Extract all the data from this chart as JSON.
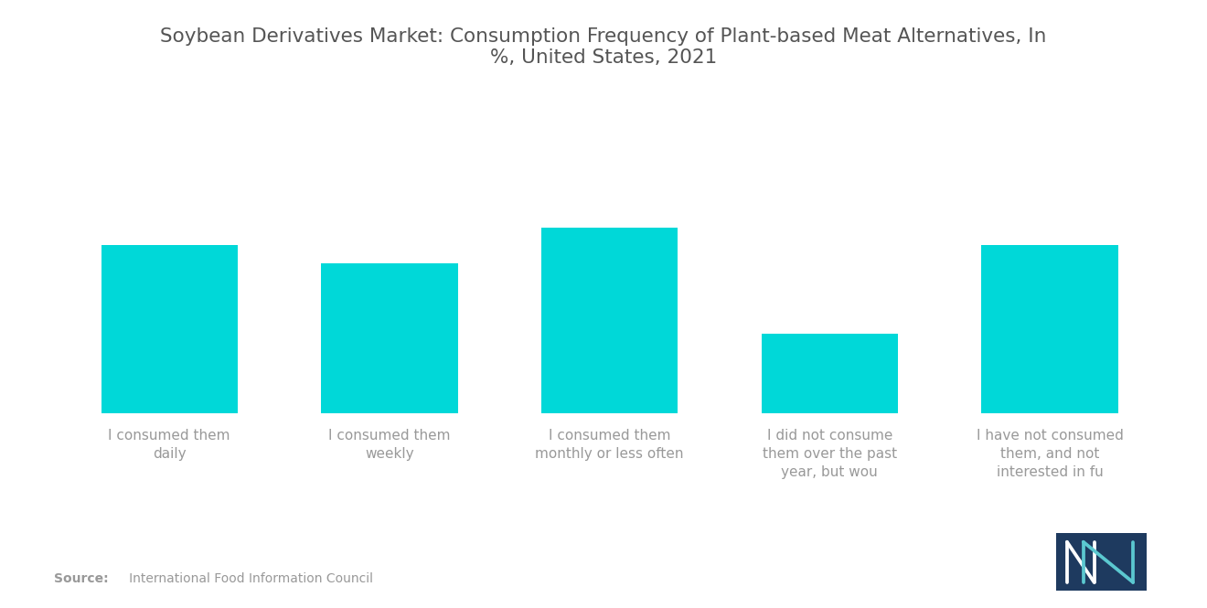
{
  "title": "Soybean Derivatives Market: Consumption Frequency of Plant-based Meat Alternatives, In\n%, United States, 2021",
  "categories": [
    "I consumed them\ndaily",
    "I consumed them\nweekly",
    "I consumed them\nmonthly or less often",
    "I did not consume\nthem over the past\nyear, but wou",
    "I have not consumed\nthem, and not\ninterested in fu"
  ],
  "values": [
    38,
    34,
    42,
    18,
    38
  ],
  "bar_color": "#00D8D8",
  "background_color": "#ffffff",
  "title_color": "#555555",
  "label_color": "#999999",
  "source_bold": "Source:",
  "source_rest": "   International Food Information Council",
  "ylim": [
    0,
    55
  ],
  "title_fontsize": 15.5,
  "label_fontsize": 11,
  "bar_width": 0.62,
  "logo_bg": "#1e3a5f"
}
